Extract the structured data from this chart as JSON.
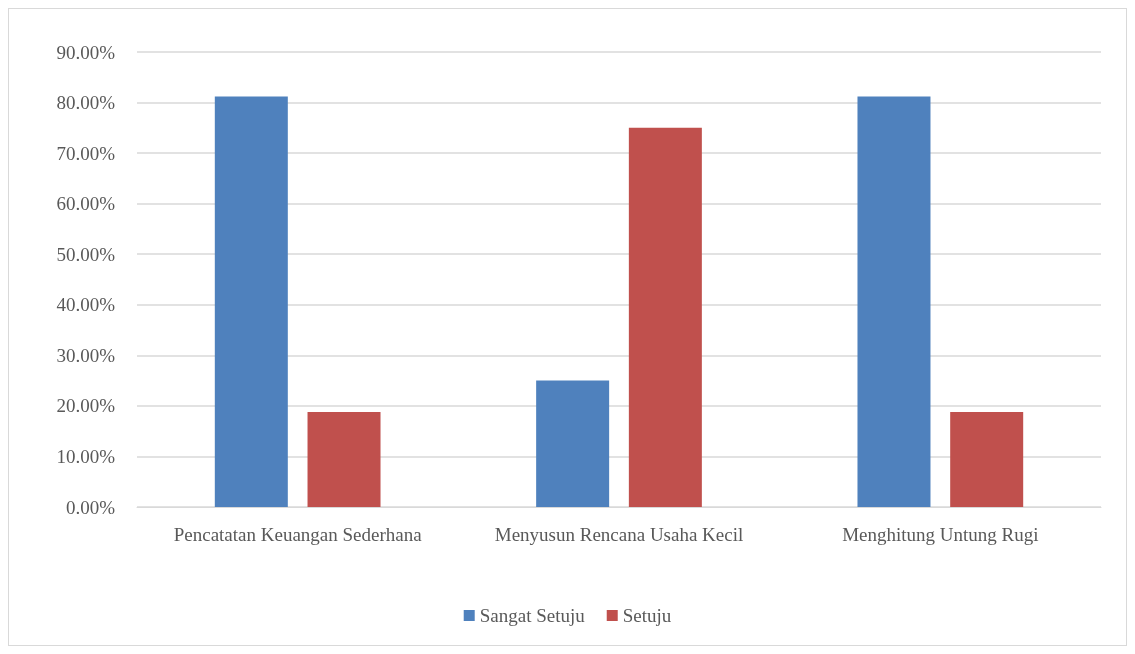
{
  "chart_data": {
    "type": "bar",
    "categories": [
      "Pencatatan Keuangan Sederhana",
      "Menyusun Rencana Usaha Kecil",
      "Menghitung Untung Rugi"
    ],
    "series": [
      {
        "name": "Sangat Setuju",
        "color": "#4f81bd",
        "values": [
          81.2,
          25,
          81.2
        ]
      },
      {
        "name": "Setuju",
        "color": "#c0504d",
        "values": [
          18.8,
          75,
          18.8
        ]
      }
    ],
    "ylim": [
      0,
      90
    ],
    "yticks": [
      {
        "value": 0,
        "label": "0.00%"
      },
      {
        "value": 10,
        "label": "10.00%"
      },
      {
        "value": 20,
        "label": "20.00%"
      },
      {
        "value": 30,
        "label": "30.00%"
      },
      {
        "value": 40,
        "label": "40.00%"
      },
      {
        "value": 50,
        "label": "50.00%"
      },
      {
        "value": 60,
        "label": "60.00%"
      },
      {
        "value": 70,
        "label": "70.00%"
      },
      {
        "value": 80,
        "label": "80.00%"
      },
      {
        "value": 90,
        "label": "90.00%"
      }
    ],
    "grid": "y",
    "legend": "bottom"
  }
}
